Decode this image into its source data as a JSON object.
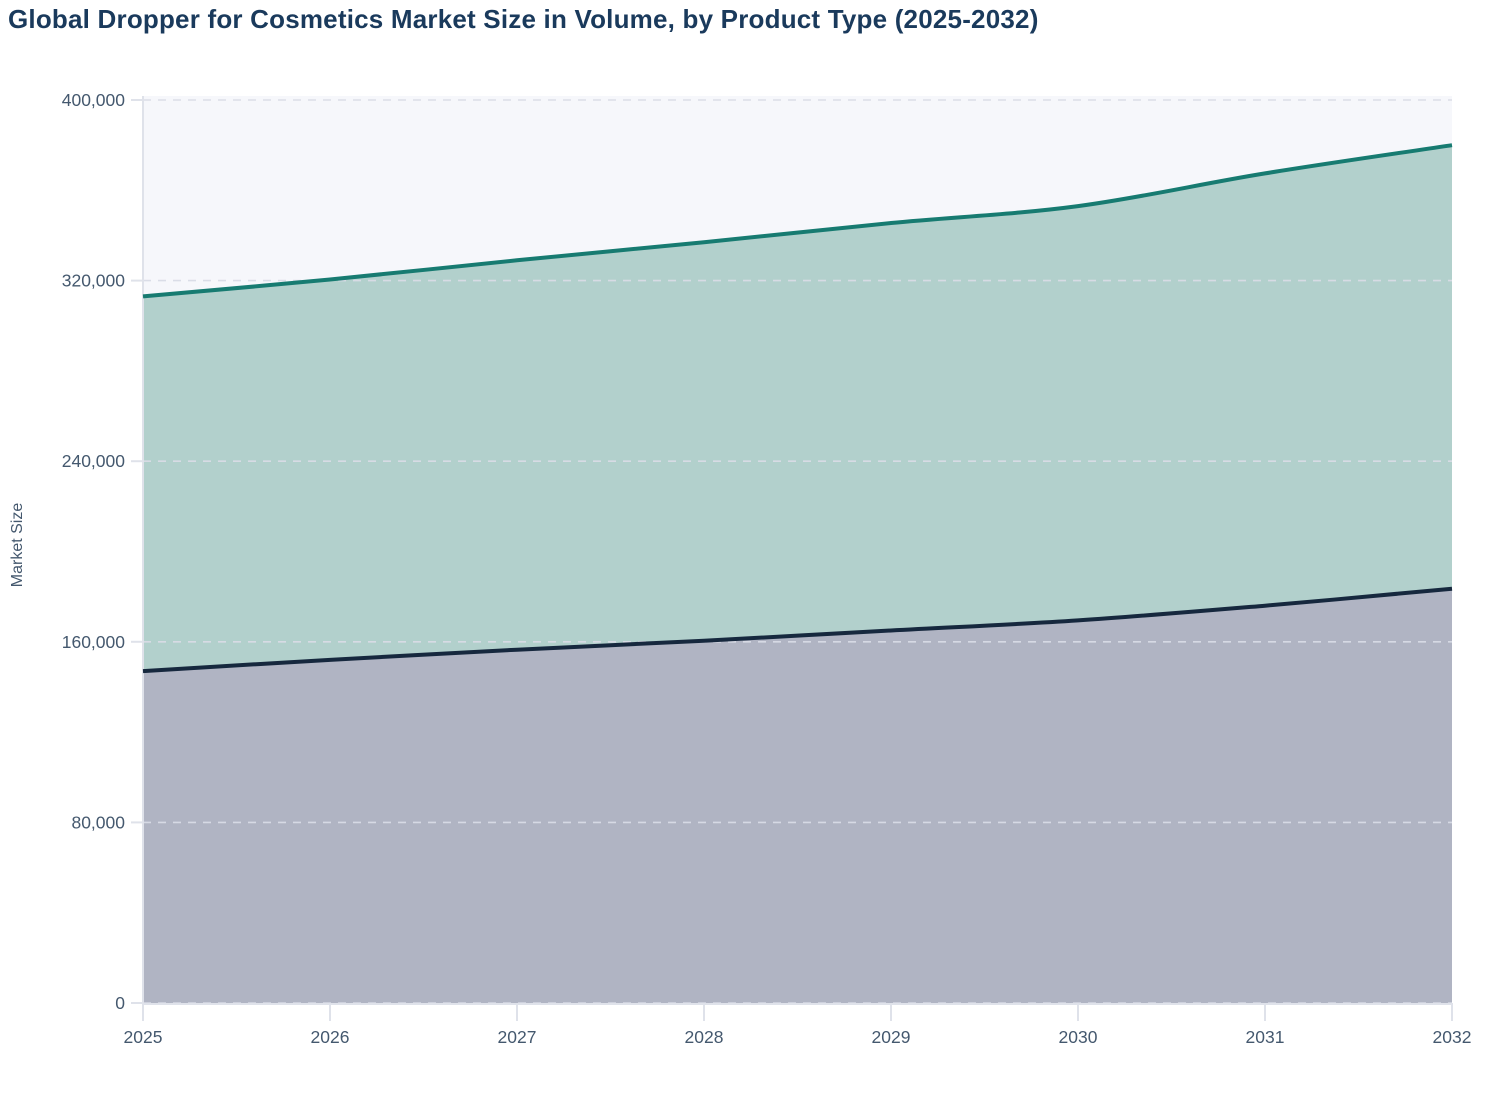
{
  "title": "Global Dropper for Cosmetics Market Size in Volume, by Product Type (2025-2032)",
  "chart_data": {
    "type": "area",
    "stacked": true,
    "title": "Global Dropper for Cosmetics Market Size in Volume, by Product Type (2025-2032)",
    "xlabel": "",
    "ylabel": "Market Size",
    "x": [
      2025,
      2026,
      2027,
      2028,
      2029,
      2030,
      2031,
      2032
    ],
    "xtick_labels": [
      "2025",
      "2026",
      "2027",
      "2028",
      "2029",
      "2030",
      "2031",
      "2032"
    ],
    "ylim": [
      0,
      400000
    ],
    "yticks": [
      0,
      80000,
      160000,
      240000,
      320000,
      400000
    ],
    "ytick_labels": [
      "0",
      "80,000",
      "160,000",
      "240,000",
      "320,000",
      "400,000"
    ],
    "grid": "horizontal-dashed",
    "legend": "none",
    "series": [
      {
        "id": "bottom-band",
        "values": [
          147000,
          152000,
          156500,
          160500,
          165000,
          169500,
          176000,
          183500
        ],
        "line_color": "#16283e",
        "fill_color": "#b0b4c3"
      },
      {
        "id": "top-band",
        "values": [
          166000,
          168500,
          172500,
          176500,
          180500,
          183500,
          191500,
          196500
        ],
        "line_color": "#177b71",
        "fill_color": "#b2d0cc"
      }
    ],
    "stacked_totals": [
      313000,
      320500,
      329000,
      337000,
      345500,
      353000,
      367500,
      380000
    ],
    "colors": {
      "plot_background": "#f6f7fb",
      "gridline": "#d9dce6",
      "axis_line": "#dfe2ea",
      "tick_text": "#44586e",
      "title_text": "#1a3a5c"
    }
  }
}
